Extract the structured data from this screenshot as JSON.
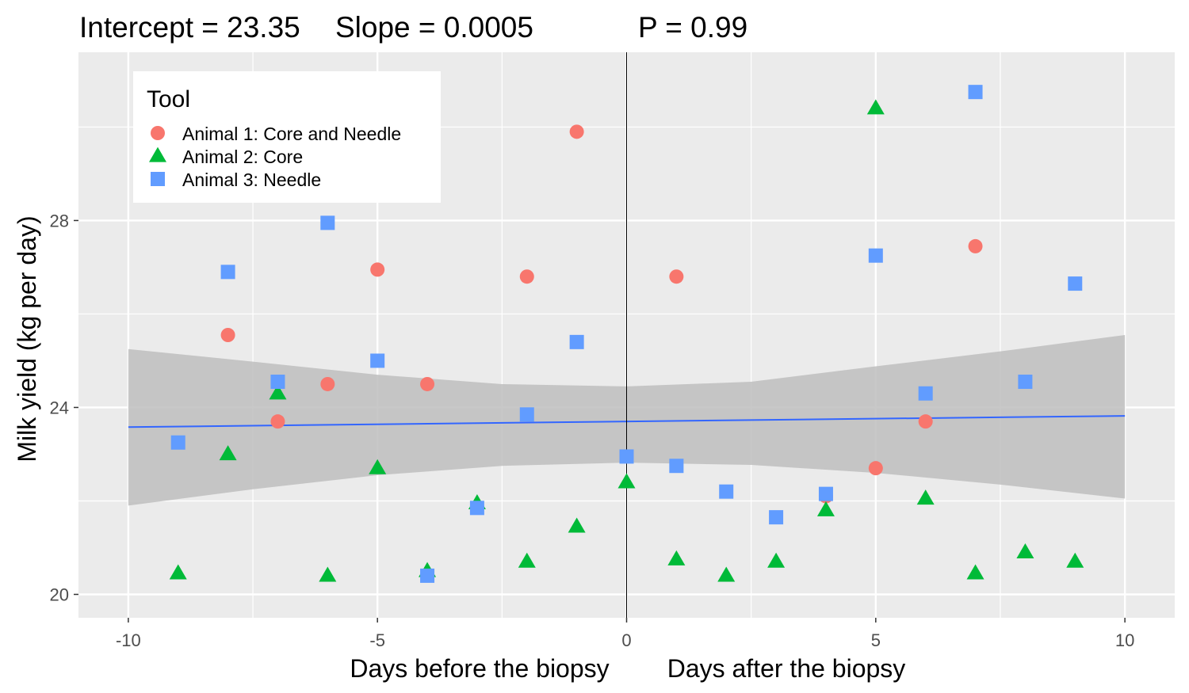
{
  "chart_data": {
    "type": "scatter",
    "title_parts": [
      "Intercept = 23.35",
      "Slope = 0.0005",
      "P = 0.99"
    ],
    "xlabel_left": "Days before the biopsy",
    "xlabel_right": "Days after the biopsy",
    "ylabel": "Milk yield (kg per day)",
    "xlim": [
      -11,
      11
    ],
    "ylim": [
      19.5,
      31.6
    ],
    "x_ticks": [
      -10,
      -5,
      0,
      5,
      10
    ],
    "x_tick_labels": [
      "-10",
      "-5",
      "0",
      "5",
      "10"
    ],
    "y_ticks": [
      20,
      24,
      28
    ],
    "y_tick_labels": [
      "20",
      "24",
      "28"
    ],
    "vline_x": 0,
    "legend": {
      "title": "Tool",
      "entries": [
        {
          "name": "Animal 1: Core and Needle",
          "shape": "circle",
          "color": "#F8766D"
        },
        {
          "name": "Animal 2: Core",
          "shape": "triangle",
          "color": "#00BA38"
        },
        {
          "name": "Animal 3: Needle",
          "shape": "square",
          "color": "#619CFF"
        }
      ]
    },
    "series": [
      {
        "name": "Animal 1: Core and Needle",
        "shape": "circle",
        "color": "#F8766D",
        "points": [
          [
            -8,
            25.55
          ],
          [
            -7,
            23.7
          ],
          [
            -6,
            24.5
          ],
          [
            -5,
            26.95
          ],
          [
            -4,
            24.5
          ],
          [
            -2,
            26.8
          ],
          [
            -1,
            29.9
          ],
          [
            1,
            26.8
          ],
          [
            4,
            22.1
          ],
          [
            5,
            22.7
          ],
          [
            6,
            23.7
          ],
          [
            7,
            27.45
          ]
        ]
      },
      {
        "name": "Animal 2: Core",
        "shape": "triangle",
        "color": "#00BA38",
        "points": [
          [
            -9,
            20.45
          ],
          [
            -8,
            23.0
          ],
          [
            -7,
            24.3
          ],
          [
            -6,
            20.4
          ],
          [
            -5,
            22.7
          ],
          [
            -4,
            20.5
          ],
          [
            -3,
            21.95
          ],
          [
            -2,
            20.7
          ],
          [
            -1,
            21.45
          ],
          [
            0,
            22.4
          ],
          [
            1,
            20.75
          ],
          [
            2,
            20.4
          ],
          [
            3,
            20.7
          ],
          [
            4,
            21.8
          ],
          [
            5,
            30.4
          ],
          [
            6,
            22.05
          ],
          [
            7,
            20.45
          ],
          [
            8,
            20.9
          ],
          [
            9,
            20.7
          ]
        ]
      },
      {
        "name": "Animal 3: Needle",
        "shape": "square",
        "color": "#619CFF",
        "points": [
          [
            -9,
            23.25
          ],
          [
            -8,
            26.9
          ],
          [
            -7,
            24.55
          ],
          [
            -6,
            27.95
          ],
          [
            -5,
            25.0
          ],
          [
            -4,
            20.4
          ],
          [
            -3,
            21.85
          ],
          [
            -2,
            23.85
          ],
          [
            -1,
            25.4
          ],
          [
            0,
            22.95
          ],
          [
            1,
            22.75
          ],
          [
            2,
            22.2
          ],
          [
            3,
            21.65
          ],
          [
            4,
            22.15
          ],
          [
            5,
            27.25
          ],
          [
            6,
            24.3
          ],
          [
            7,
            30.75
          ],
          [
            8,
            24.55
          ],
          [
            9,
            26.65
          ]
        ]
      }
    ],
    "fit_line": {
      "x": [
        -10,
        10
      ],
      "y": [
        23.58,
        23.82
      ],
      "color": "#3366FF"
    },
    "confidence_band": {
      "x": [
        -10,
        -7.5,
        -5,
        -2.5,
        0,
        2.5,
        5,
        7.5,
        10
      ],
      "lower": [
        21.9,
        22.25,
        22.55,
        22.75,
        22.82,
        22.77,
        22.6,
        22.35,
        22.05
      ],
      "upper": [
        25.25,
        24.98,
        24.7,
        24.5,
        24.45,
        24.55,
        24.88,
        25.2,
        25.55
      ],
      "color": "#BEBEBE"
    },
    "grid": true,
    "legend_position": "top-left inside"
  }
}
